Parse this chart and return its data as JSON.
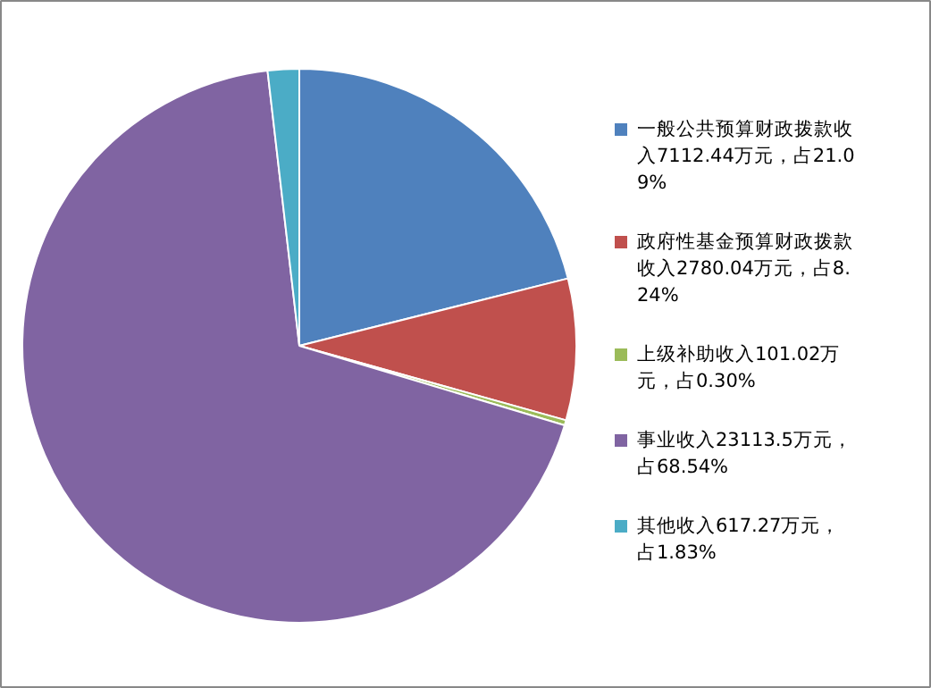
{
  "chart_data": {
    "type": "pie",
    "categories": [
      "一般公共预算财政拨款收入7112.44万元，占21.09%",
      "政府性基金预算财政拨款收入2780.04万元，占8.24%",
      "上级补助收入101.02万元，占0.30%",
      "事业收入23113.5万元，占68.54%",
      "其他收入617.27万元，占1.83%"
    ],
    "values": [
      7112.44,
      2780.04,
      101.02,
      23113.5,
      617.27
    ],
    "colors": [
      "#4f81bd",
      "#c0504d",
      "#9bbb59",
      "#8064a2",
      "#4bacc6"
    ],
    "legend": "right"
  }
}
